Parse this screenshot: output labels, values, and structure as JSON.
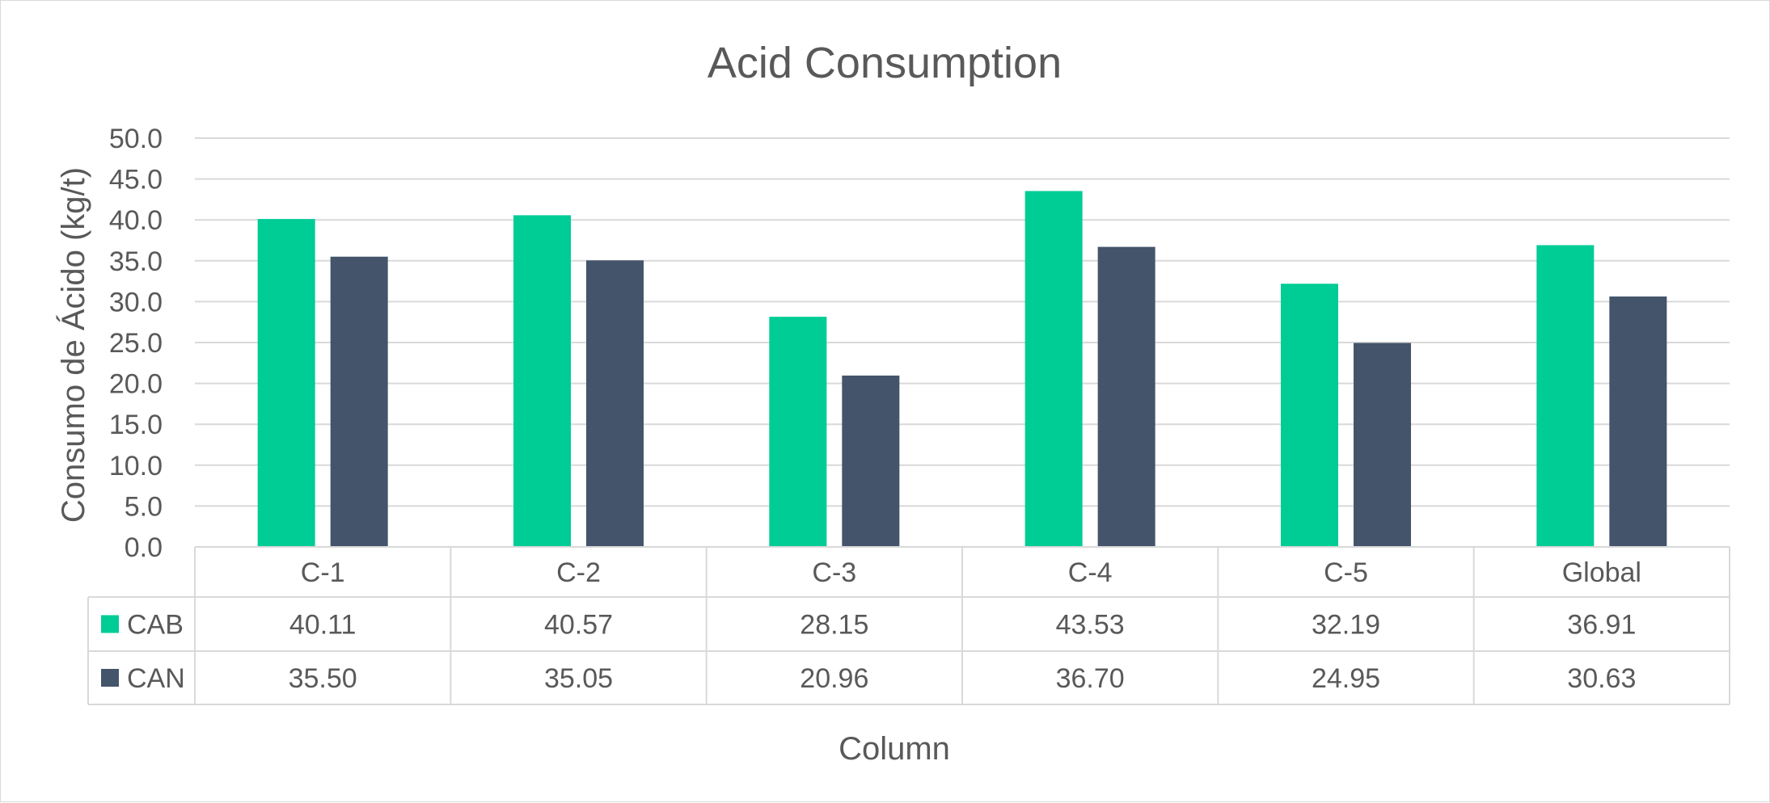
{
  "chart_data": {
    "type": "bar",
    "title": "Acid Consumption",
    "xlabel": "Column",
    "ylabel": "Consumo de Ácido (kg/t)",
    "ylim": [
      0,
      50
    ],
    "ytick_step": 5,
    "ytick_labels": [
      "0.0",
      "5.0",
      "10.0",
      "15.0",
      "20.0",
      "25.0",
      "30.0",
      "35.0",
      "40.0",
      "45.0",
      "50.0"
    ],
    "grid": true,
    "legend": "data-table",
    "categories": [
      "C-1",
      "C-2",
      "C-3",
      "C-4",
      "C-5",
      "Global"
    ],
    "series": [
      {
        "name": "CAB",
        "color": "#00CC96",
        "values": [
          40.11,
          40.57,
          28.15,
          43.53,
          32.19,
          36.91
        ],
        "labels": [
          "40.11",
          "40.57",
          "28.15",
          "43.53",
          "32.19",
          "36.91"
        ]
      },
      {
        "name": "CAN",
        "color": "#44546A",
        "values": [
          35.5,
          35.05,
          20.96,
          36.7,
          24.95,
          30.63
        ],
        "labels": [
          "35.50",
          "35.05",
          "20.96",
          "36.70",
          "24.95",
          "30.63"
        ]
      }
    ]
  }
}
